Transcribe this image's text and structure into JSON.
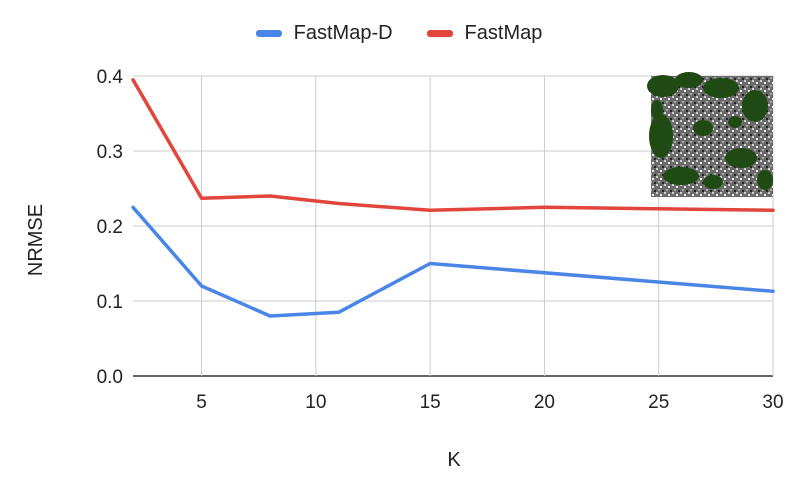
{
  "chart_data": {
    "type": "line",
    "xlabel": "K",
    "ylabel": "NRMSE",
    "xlim": [
      2,
      30
    ],
    "ylim": [
      0,
      0.4
    ],
    "xticks": [
      5,
      10,
      15,
      20,
      25,
      30
    ],
    "yticks": [
      "0.0",
      "0.1",
      "0.2",
      "0.3",
      "0.4"
    ],
    "grid": true,
    "legend_position": "top-center",
    "series": [
      {
        "name": "FastMap-D",
        "color": "#4a86e8",
        "x": [
          2,
          5,
          8,
          11,
          15,
          30
        ],
        "y": [
          0.225,
          0.12,
          0.08,
          0.085,
          0.15,
          0.113
        ]
      },
      {
        "name": "FastMap",
        "color": "#e2453c",
        "x": [
          2,
          5,
          8,
          11,
          15,
          20,
          30
        ],
        "y": [
          0.395,
          0.237,
          0.24,
          0.23,
          0.221,
          0.225,
          0.221
        ]
      }
    ]
  }
}
